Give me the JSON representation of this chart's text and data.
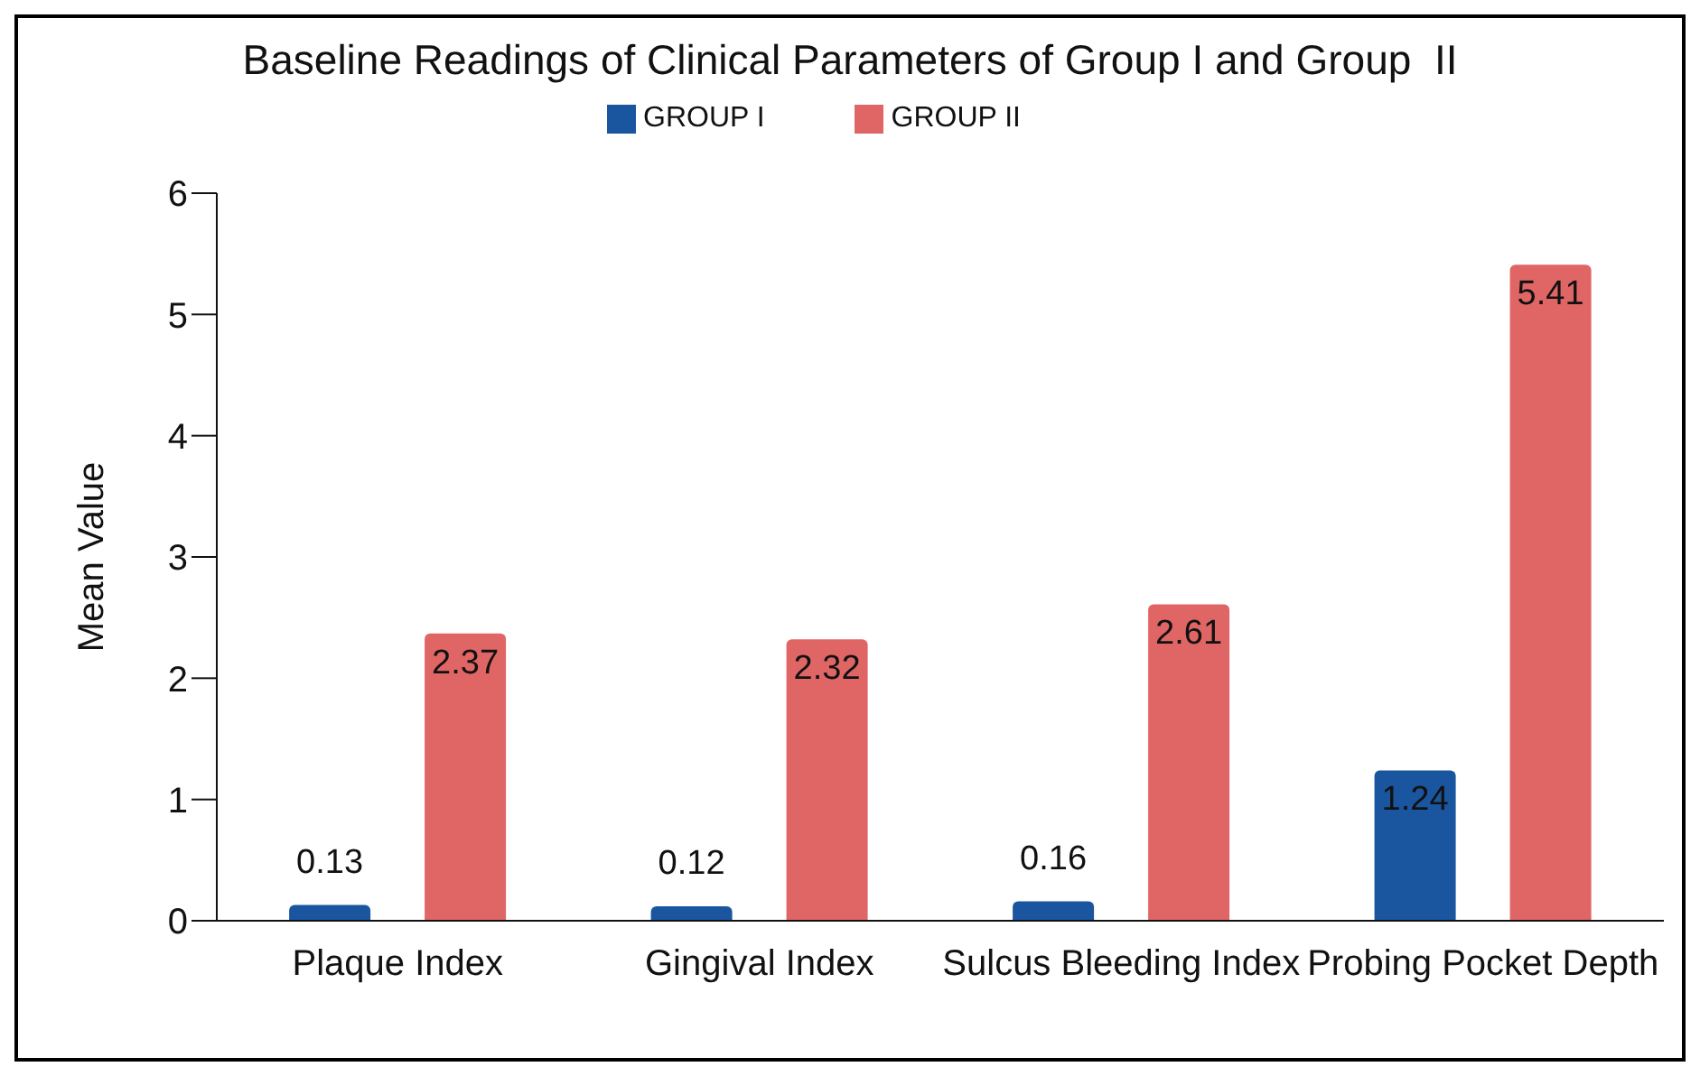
{
  "chart_data": {
    "type": "bar",
    "title": "Baseline Readings of Clinical Parameters of Group I and Group  II",
    "ylabel": "Mean Value",
    "categories": [
      "Plaque Index",
      "Gingival Index",
      "Sulcus Bleeding Index",
      "Probing Pocket Depth"
    ],
    "series": [
      {
        "name": "GROUP I",
        "color": "#1a56a0",
        "values": [
          0.13,
          0.12,
          0.16,
          1.24
        ]
      },
      {
        "name": "GROUP II",
        "color": "#e06666",
        "values": [
          2.37,
          2.32,
          2.61,
          5.41
        ]
      }
    ],
    "ylim": [
      0,
      6
    ],
    "yticks": [
      0,
      1,
      2,
      3,
      4,
      5,
      6
    ],
    "grid": false,
    "legend": "top",
    "data_labels": true
  }
}
